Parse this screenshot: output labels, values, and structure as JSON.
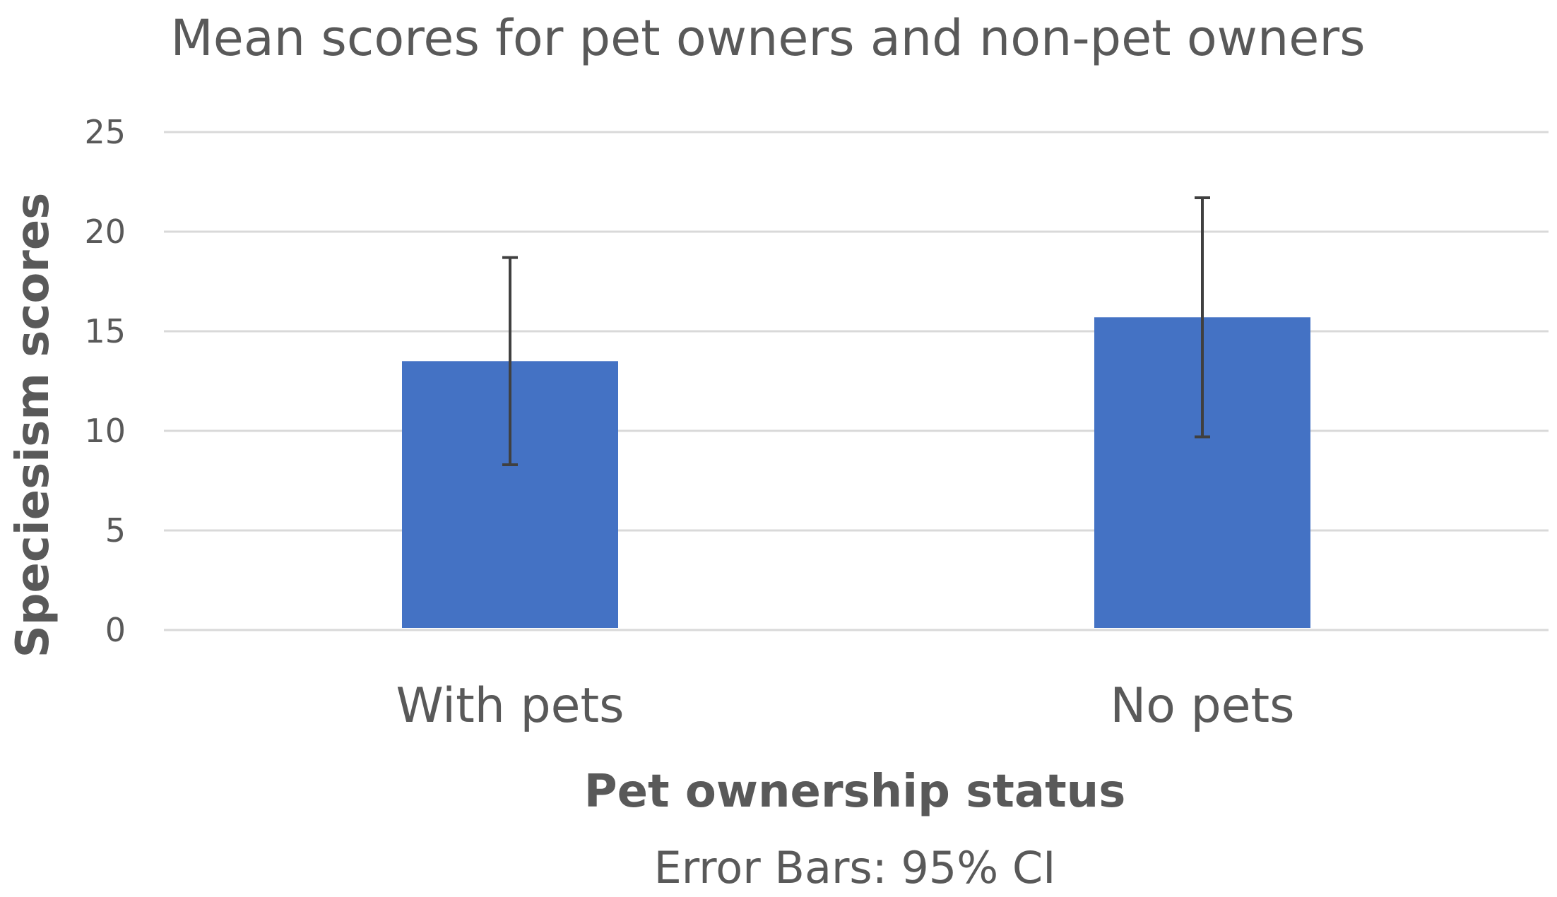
{
  "chart_data": {
    "type": "bar",
    "title": "Mean scores for pet owners and non-pet owners",
    "xlabel": "Pet ownership status",
    "ylabel": "Speciesism scores",
    "note": "Error Bars: 95% CI",
    "categories": [
      "With pets",
      "No pets"
    ],
    "values": [
      13.5,
      15.7
    ],
    "error_low": [
      8.3,
      9.7
    ],
    "error_high": [
      18.7,
      21.7
    ],
    "ylim": [
      0,
      25
    ],
    "yticks": [
      0,
      5,
      10,
      15,
      20,
      25
    ],
    "grid": true,
    "legend": "none",
    "colors": {
      "bar": "#4472c4",
      "error_bar": "#404040",
      "grid": "#d9d9d9",
      "text": "#595959"
    }
  }
}
